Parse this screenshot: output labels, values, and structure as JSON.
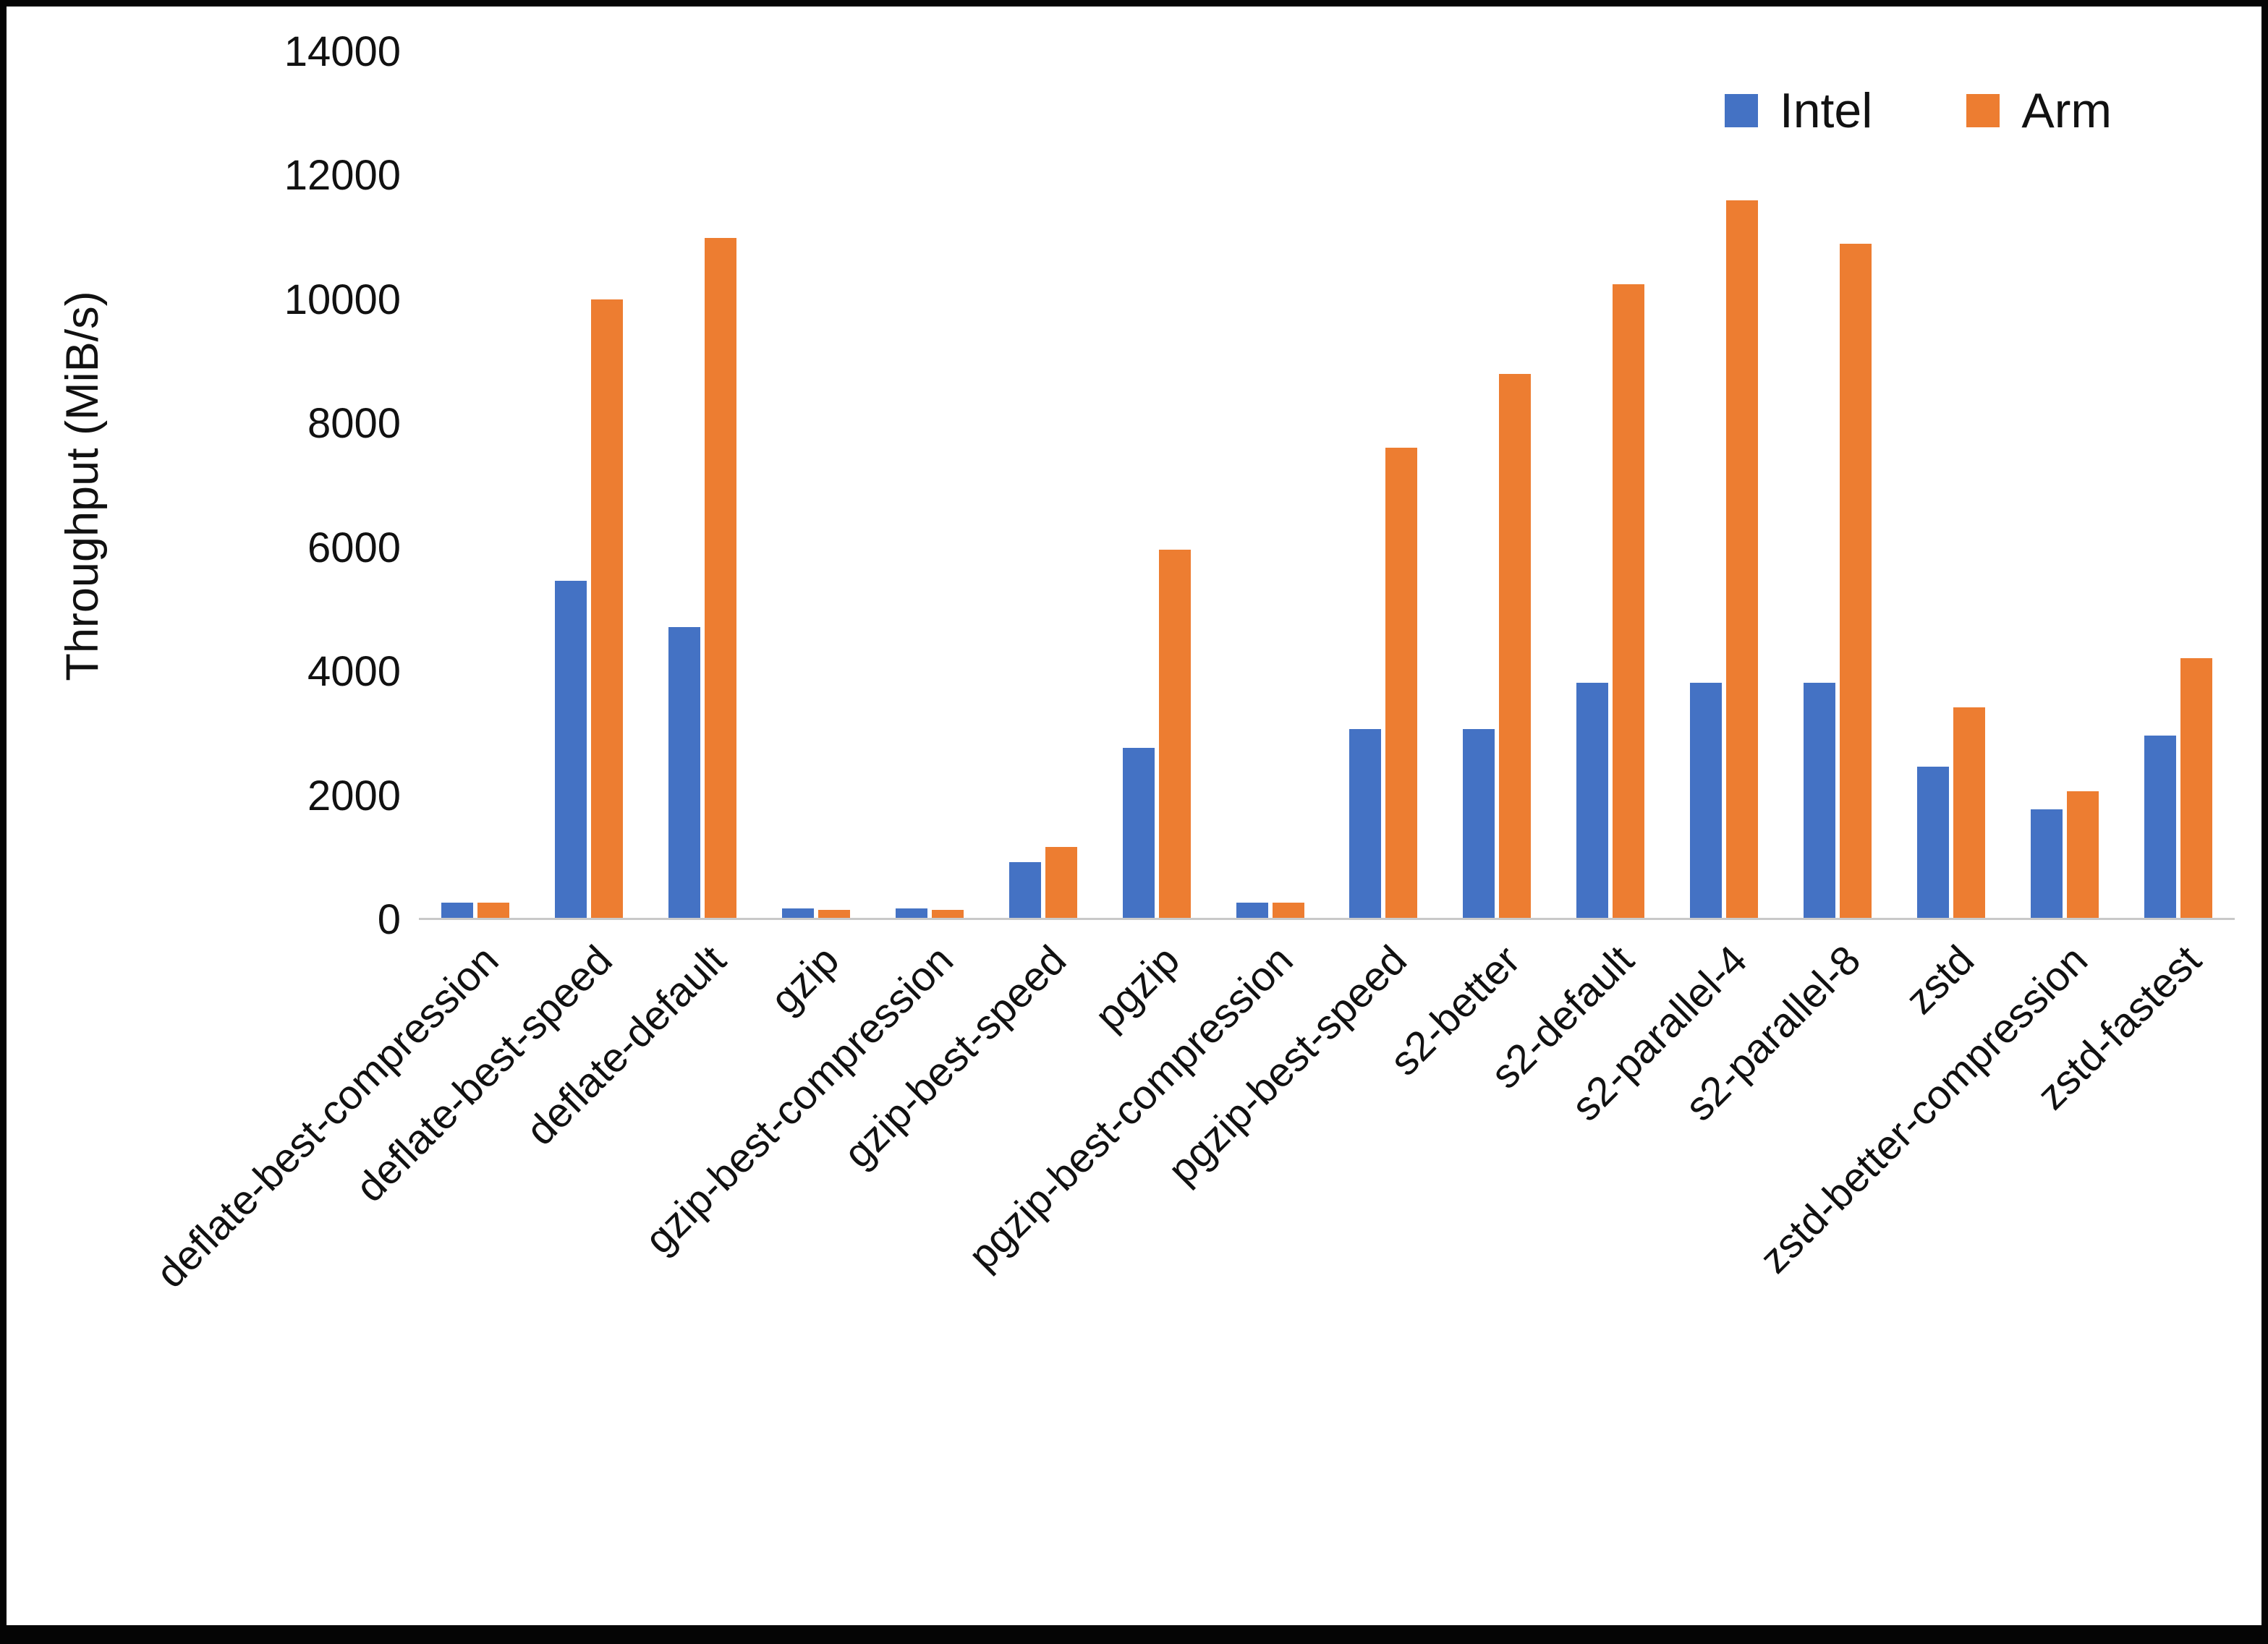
{
  "chart_data": {
    "type": "bar",
    "title": "",
    "xlabel": "",
    "ylabel": "Throughput (MiB/s)",
    "ylim": [
      0,
      14000
    ],
    "yticks": [
      0,
      2000,
      4000,
      6000,
      8000,
      10000,
      12000,
      14000
    ],
    "grid": false,
    "legend_position": "top-right",
    "categories": [
      "deflate-best-compression",
      "deflate-best-speed",
      "deflate-default",
      "gzip",
      "gzip-best-compression",
      "gzip-best-speed",
      "pgzip",
      "pgzip-best-compression",
      "pgzip-best-speed",
      "s2-better",
      "s2-default",
      "s2-parallel-4",
      "s2-parallel-8",
      "zstd",
      "zstd-better-compression",
      "zstd-fastest"
    ],
    "series": [
      {
        "name": "Intel",
        "color": "#4472C4",
        "values": [
          250,
          5450,
          4700,
          150,
          150,
          900,
          2750,
          250,
          3050,
          3050,
          3800,
          3800,
          3800,
          2450,
          1750,
          2950
        ]
      },
      {
        "name": "Arm",
        "color": "#ED7D31",
        "values": [
          250,
          10000,
          11000,
          130,
          130,
          1150,
          5950,
          250,
          7600,
          8800,
          10250,
          11600,
          10900,
          3400,
          2050,
          4200
        ]
      }
    ]
  }
}
